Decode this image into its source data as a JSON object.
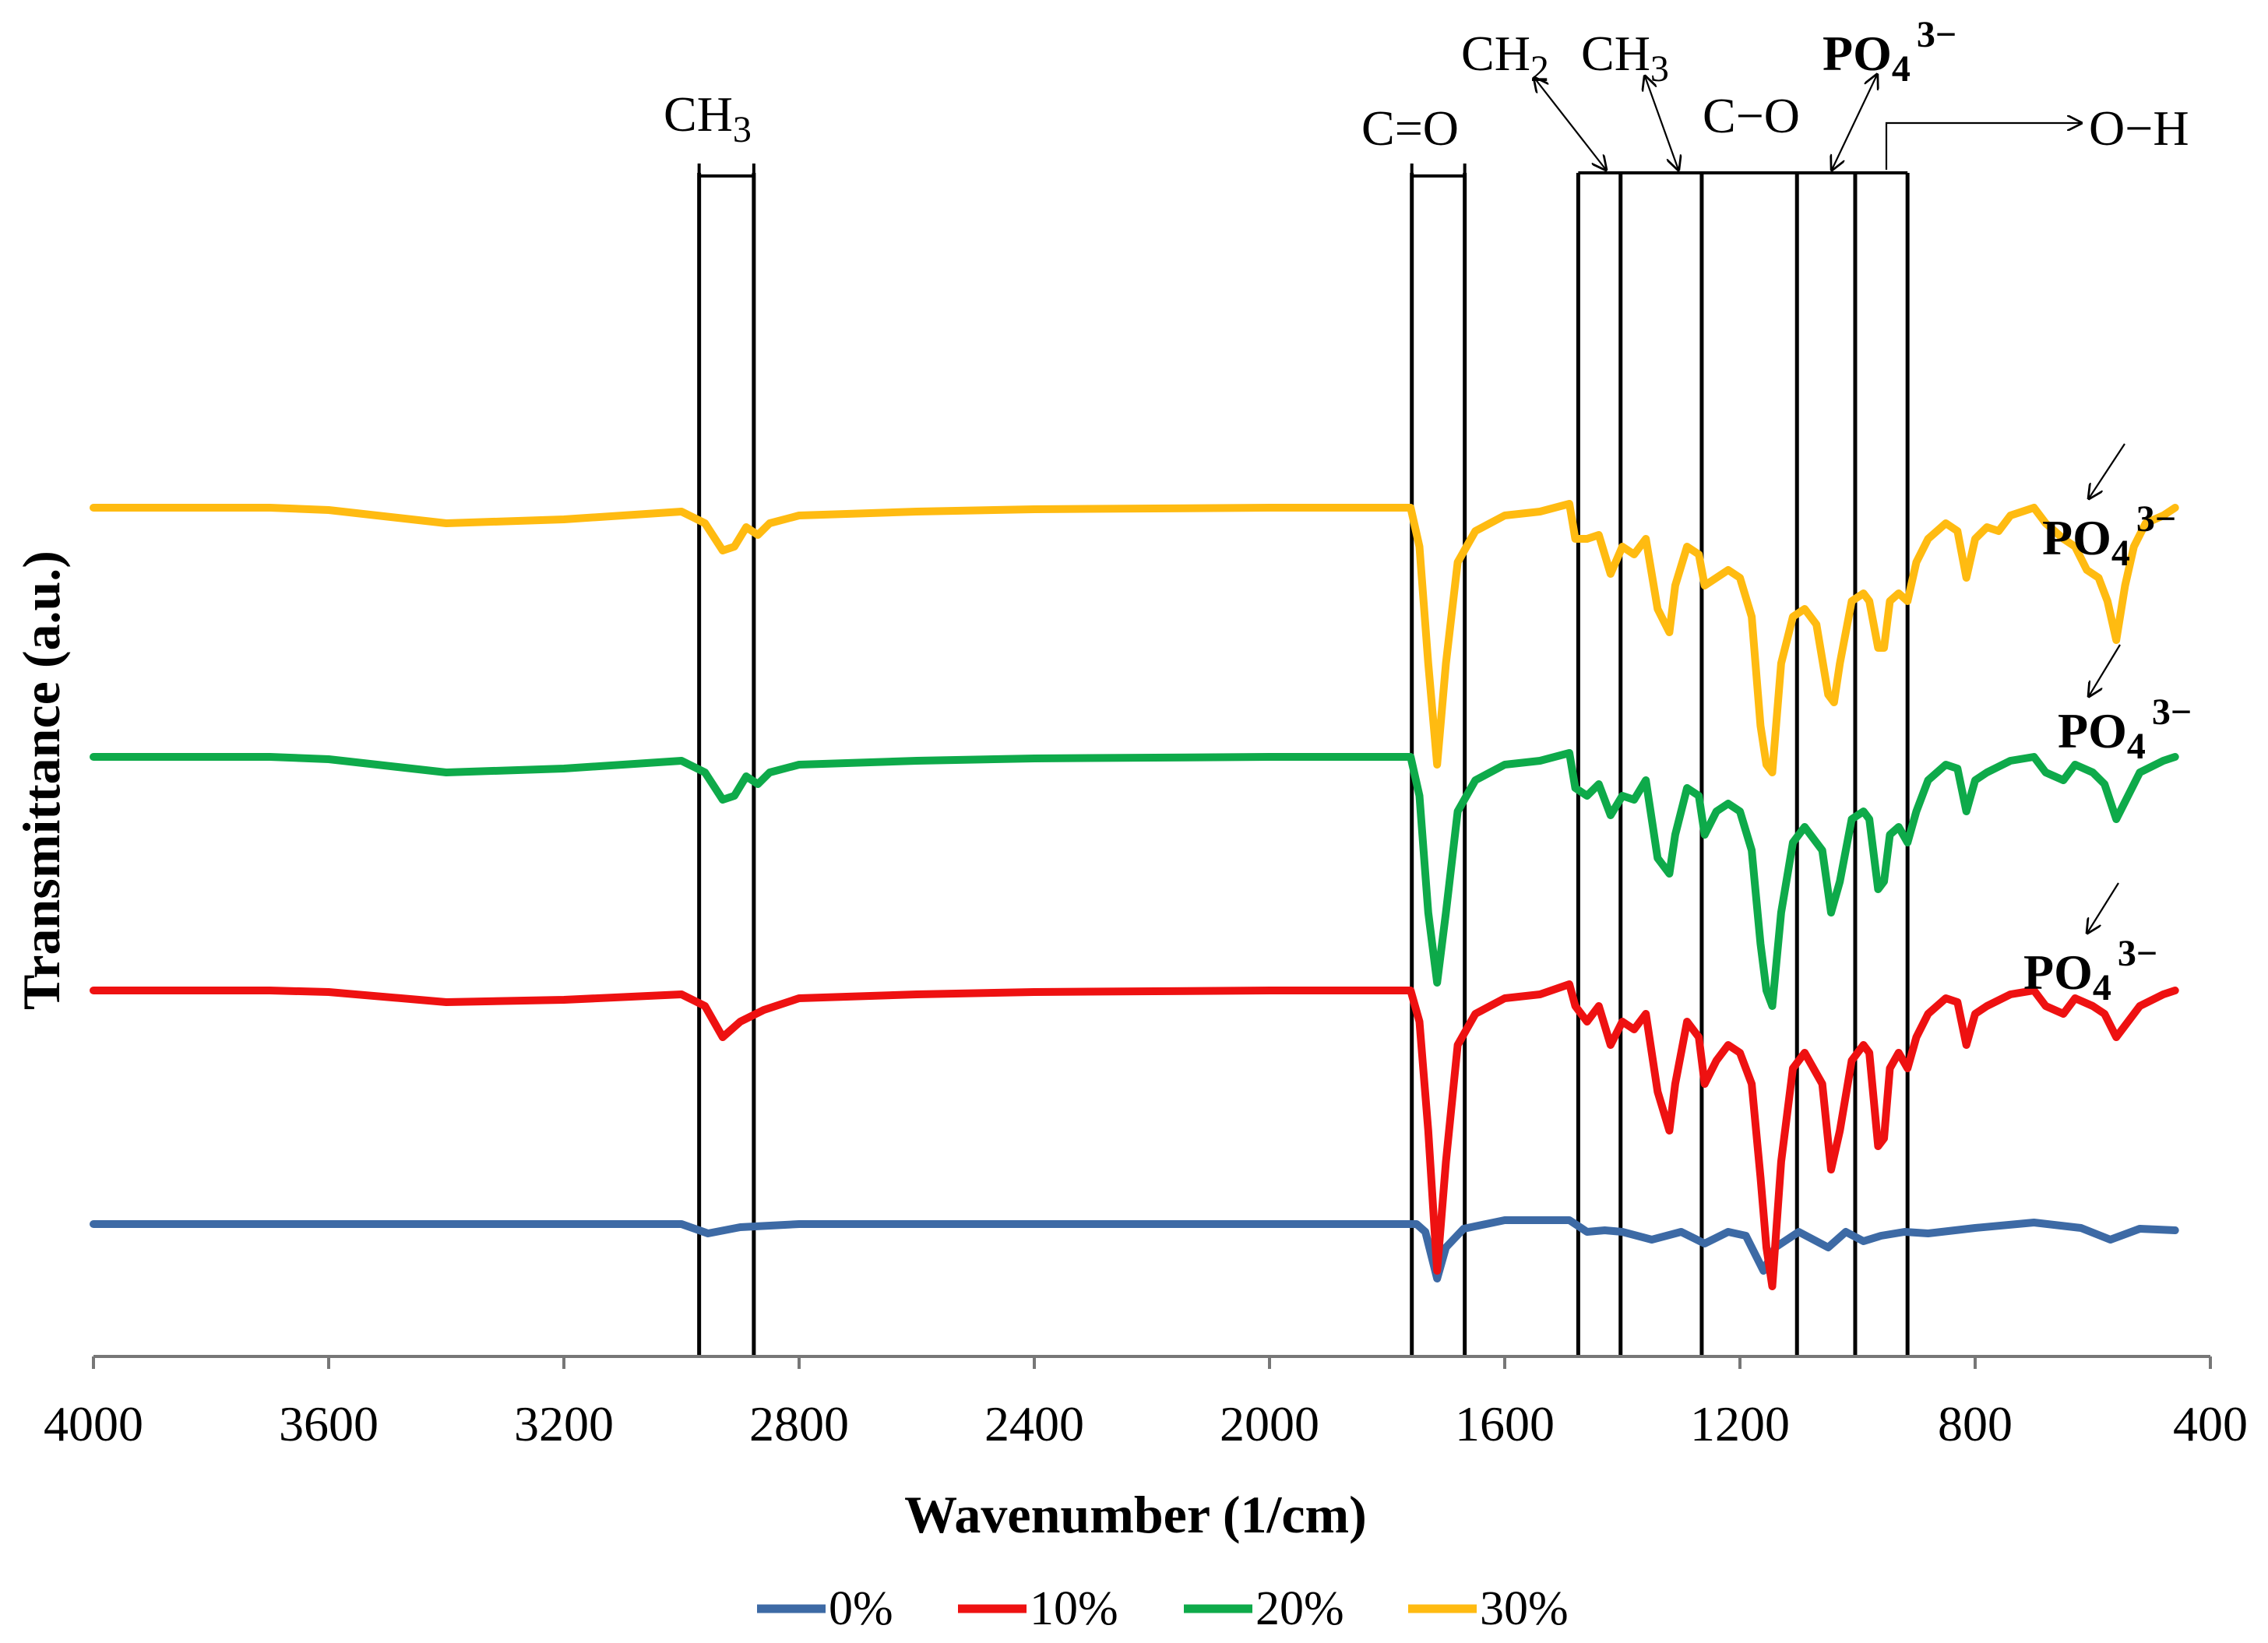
{
  "chart_data": {
    "type": "line",
    "title": "",
    "xlabel": "Wavenumber (1/cm)",
    "ylabel": "Transmittance (a.u.)",
    "xlim": [
      4000,
      400
    ],
    "x_ticks": [
      "4000",
      "3600",
      "3200",
      "2800",
      "2400",
      "2000",
      "1600",
      "1200",
      "800",
      "400"
    ],
    "legend_position": "bottom",
    "series": [
      {
        "name": "0%",
        "color": "#3d6aa5",
        "baseline": 0.17,
        "points": [
          [
            4000,
            0
          ],
          [
            3700,
            0
          ],
          [
            3400,
            0
          ],
          [
            3000,
            0
          ],
          [
            2955,
            -0.012
          ],
          [
            2900,
            -0.004
          ],
          [
            2800,
            0
          ],
          [
            2400,
            0
          ],
          [
            2000,
            0
          ],
          [
            1750,
            0
          ],
          [
            1735,
            -0.01
          ],
          [
            1715,
            -0.07
          ],
          [
            1700,
            -0.03
          ],
          [
            1670,
            -0.006
          ],
          [
            1600,
            0.005
          ],
          [
            1490,
            0.005
          ],
          [
            1460,
            -0.01
          ],
          [
            1430,
            -0.008
          ],
          [
            1400,
            -0.01
          ],
          [
            1350,
            -0.02
          ],
          [
            1300,
            -0.01
          ],
          [
            1260,
            -0.025
          ],
          [
            1220,
            -0.01
          ],
          [
            1190,
            -0.015
          ],
          [
            1160,
            -0.06
          ],
          [
            1140,
            -0.03
          ],
          [
            1100,
            -0.01
          ],
          [
            1050,
            -0.03
          ],
          [
            1020,
            -0.01
          ],
          [
            990,
            -0.022
          ],
          [
            960,
            -0.015
          ],
          [
            920,
            -0.01
          ],
          [
            880,
            -0.012
          ],
          [
            800,
            -0.005
          ],
          [
            700,
            0.002
          ],
          [
            620,
            -0.005
          ],
          [
            570,
            -0.02
          ],
          [
            520,
            -0.006
          ],
          [
            460,
            -0.008
          ]
        ]
      },
      {
        "name": "10%",
        "color": "#ee1111",
        "baseline": 0.47,
        "points": [
          [
            4000,
            0
          ],
          [
            3700,
            0
          ],
          [
            3600,
            -0.002
          ],
          [
            3400,
            -0.015
          ],
          [
            3200,
            -0.012
          ],
          [
            3000,
            -0.005
          ],
          [
            2960,
            -0.02
          ],
          [
            2930,
            -0.06
          ],
          [
            2900,
            -0.04
          ],
          [
            2860,
            -0.025
          ],
          [
            2800,
            -0.01
          ],
          [
            2600,
            -0.005
          ],
          [
            2400,
            -0.002
          ],
          [
            2000,
            0
          ],
          [
            1760,
            0
          ],
          [
            1745,
            -0.04
          ],
          [
            1730,
            -0.18
          ],
          [
            1715,
            -0.36
          ],
          [
            1700,
            -0.22
          ],
          [
            1680,
            -0.07
          ],
          [
            1650,
            -0.03
          ],
          [
            1600,
            -0.01
          ],
          [
            1540,
            -0.005
          ],
          [
            1490,
            0.008
          ],
          [
            1480,
            -0.02
          ],
          [
            1460,
            -0.04
          ],
          [
            1440,
            -0.02
          ],
          [
            1420,
            -0.07
          ],
          [
            1400,
            -0.04
          ],
          [
            1380,
            -0.05
          ],
          [
            1360,
            -0.03
          ],
          [
            1340,
            -0.13
          ],
          [
            1320,
            -0.18
          ],
          [
            1310,
            -0.12
          ],
          [
            1290,
            -0.04
          ],
          [
            1270,
            -0.06
          ],
          [
            1260,
            -0.12
          ],
          [
            1240,
            -0.09
          ],
          [
            1220,
            -0.07
          ],
          [
            1200,
            -0.08
          ],
          [
            1180,
            -0.12
          ],
          [
            1165,
            -0.24
          ],
          [
            1155,
            -0.33
          ],
          [
            1145,
            -0.38
          ],
          [
            1130,
            -0.22
          ],
          [
            1110,
            -0.1
          ],
          [
            1090,
            -0.08
          ],
          [
            1060,
            -0.12
          ],
          [
            1045,
            -0.23
          ],
          [
            1030,
            -0.18
          ],
          [
            1010,
            -0.09
          ],
          [
            990,
            -0.07
          ],
          [
            980,
            -0.08
          ],
          [
            965,
            -0.2
          ],
          [
            955,
            -0.19
          ],
          [
            945,
            -0.1
          ],
          [
            930,
            -0.08
          ],
          [
            915,
            -0.1
          ],
          [
            900,
            -0.06
          ],
          [
            880,
            -0.03
          ],
          [
            850,
            -0.01
          ],
          [
            830,
            -0.015
          ],
          [
            815,
            -0.07
          ],
          [
            800,
            -0.03
          ],
          [
            780,
            -0.02
          ],
          [
            740,
            -0.005
          ],
          [
            700,
            0
          ],
          [
            680,
            -0.02
          ],
          [
            650,
            -0.03
          ],
          [
            630,
            -0.01
          ],
          [
            600,
            -0.02
          ],
          [
            580,
            -0.03
          ],
          [
            560,
            -0.06
          ],
          [
            540,
            -0.04
          ],
          [
            520,
            -0.02
          ],
          [
            480,
            -0.005
          ],
          [
            460,
            0
          ]
        ]
      },
      {
        "name": "20%",
        "color": "#0eaa4a",
        "baseline": 0.77,
        "points": [
          [
            4000,
            0
          ],
          [
            3700,
            0
          ],
          [
            3600,
            -0.003
          ],
          [
            3400,
            -0.02
          ],
          [
            3200,
            -0.015
          ],
          [
            3000,
            -0.005
          ],
          [
            2960,
            -0.02
          ],
          [
            2930,
            -0.055
          ],
          [
            2910,
            -0.05
          ],
          [
            2890,
            -0.025
          ],
          [
            2870,
            -0.035
          ],
          [
            2850,
            -0.02
          ],
          [
            2800,
            -0.01
          ],
          [
            2600,
            -0.005
          ],
          [
            2400,
            -0.002
          ],
          [
            2000,
            0
          ],
          [
            1760,
            0
          ],
          [
            1745,
            -0.05
          ],
          [
            1730,
            -0.2
          ],
          [
            1715,
            -0.29
          ],
          [
            1700,
            -0.2
          ],
          [
            1680,
            -0.07
          ],
          [
            1650,
            -0.03
          ],
          [
            1600,
            -0.01
          ],
          [
            1540,
            -0.005
          ],
          [
            1490,
            0.005
          ],
          [
            1480,
            -0.04
          ],
          [
            1460,
            -0.05
          ],
          [
            1440,
            -0.035
          ],
          [
            1420,
            -0.075
          ],
          [
            1400,
            -0.05
          ],
          [
            1380,
            -0.055
          ],
          [
            1360,
            -0.03
          ],
          [
            1340,
            -0.13
          ],
          [
            1320,
            -0.15
          ],
          [
            1310,
            -0.1
          ],
          [
            1290,
            -0.04
          ],
          [
            1270,
            -0.05
          ],
          [
            1260,
            -0.1
          ],
          [
            1240,
            -0.07
          ],
          [
            1220,
            -0.06
          ],
          [
            1200,
            -0.07
          ],
          [
            1180,
            -0.12
          ],
          [
            1165,
            -0.24
          ],
          [
            1155,
            -0.3
          ],
          [
            1145,
            -0.32
          ],
          [
            1130,
            -0.2
          ],
          [
            1110,
            -0.11
          ],
          [
            1090,
            -0.09
          ],
          [
            1060,
            -0.12
          ],
          [
            1045,
            -0.2
          ],
          [
            1030,
            -0.16
          ],
          [
            1010,
            -0.08
          ],
          [
            990,
            -0.07
          ],
          [
            980,
            -0.08
          ],
          [
            965,
            -0.17
          ],
          [
            955,
            -0.16
          ],
          [
            945,
            -0.1
          ],
          [
            930,
            -0.09
          ],
          [
            915,
            -0.11
          ],
          [
            900,
            -0.07
          ],
          [
            880,
            -0.03
          ],
          [
            850,
            -0.01
          ],
          [
            830,
            -0.015
          ],
          [
            815,
            -0.07
          ],
          [
            800,
            -0.03
          ],
          [
            780,
            -0.02
          ],
          [
            740,
            -0.005
          ],
          [
            700,
            0
          ],
          [
            680,
            -0.02
          ],
          [
            650,
            -0.03
          ],
          [
            630,
            -0.01
          ],
          [
            600,
            -0.02
          ],
          [
            580,
            -0.035
          ],
          [
            560,
            -0.08
          ],
          [
            540,
            -0.05
          ],
          [
            520,
            -0.02
          ],
          [
            480,
            -0.005
          ],
          [
            460,
            0
          ]
        ]
      },
      {
        "name": "30%",
        "color": "#ffbb11",
        "baseline": 1.09,
        "points": [
          [
            4000,
            0
          ],
          [
            3700,
            0
          ],
          [
            3600,
            -0.003
          ],
          [
            3400,
            -0.02
          ],
          [
            3200,
            -0.015
          ],
          [
            3000,
            -0.005
          ],
          [
            2960,
            -0.02
          ],
          [
            2930,
            -0.055
          ],
          [
            2910,
            -0.05
          ],
          [
            2890,
            -0.025
          ],
          [
            2870,
            -0.035
          ],
          [
            2850,
            -0.02
          ],
          [
            2800,
            -0.01
          ],
          [
            2600,
            -0.005
          ],
          [
            2400,
            -0.002
          ],
          [
            2000,
            0
          ],
          [
            1760,
            0
          ],
          [
            1745,
            -0.05
          ],
          [
            1730,
            -0.2
          ],
          [
            1715,
            -0.33
          ],
          [
            1700,
            -0.2
          ],
          [
            1680,
            -0.07
          ],
          [
            1650,
            -0.03
          ],
          [
            1600,
            -0.01
          ],
          [
            1540,
            -0.005
          ],
          [
            1490,
            0.005
          ],
          [
            1480,
            -0.04
          ],
          [
            1460,
            -0.04
          ],
          [
            1440,
            -0.035
          ],
          [
            1420,
            -0.085
          ],
          [
            1400,
            -0.05
          ],
          [
            1380,
            -0.06
          ],
          [
            1360,
            -0.04
          ],
          [
            1340,
            -0.13
          ],
          [
            1320,
            -0.16
          ],
          [
            1310,
            -0.1
          ],
          [
            1290,
            -0.05
          ],
          [
            1270,
            -0.06
          ],
          [
            1260,
            -0.1
          ],
          [
            1240,
            -0.09
          ],
          [
            1220,
            -0.08
          ],
          [
            1200,
            -0.09
          ],
          [
            1180,
            -0.14
          ],
          [
            1165,
            -0.28
          ],
          [
            1155,
            -0.33
          ],
          [
            1145,
            -0.34
          ],
          [
            1130,
            -0.2
          ],
          [
            1110,
            -0.14
          ],
          [
            1090,
            -0.13
          ],
          [
            1070,
            -0.15
          ],
          [
            1050,
            -0.24
          ],
          [
            1040,
            -0.25
          ],
          [
            1030,
            -0.2
          ],
          [
            1010,
            -0.12
          ],
          [
            990,
            -0.11
          ],
          [
            980,
            -0.12
          ],
          [
            965,
            -0.18
          ],
          [
            955,
            -0.18
          ],
          [
            945,
            -0.12
          ],
          [
            930,
            -0.11
          ],
          [
            915,
            -0.12
          ],
          [
            900,
            -0.07
          ],
          [
            880,
            -0.04
          ],
          [
            850,
            -0.02
          ],
          [
            830,
            -0.03
          ],
          [
            815,
            -0.09
          ],
          [
            800,
            -0.04
          ],
          [
            780,
            -0.025
          ],
          [
            760,
            -0.03
          ],
          [
            740,
            -0.01
          ],
          [
            700,
            0
          ],
          [
            680,
            -0.02
          ],
          [
            650,
            -0.04
          ],
          [
            630,
            -0.05
          ],
          [
            610,
            -0.08
          ],
          [
            590,
            -0.09
          ],
          [
            575,
            -0.12
          ],
          [
            560,
            -0.17
          ],
          [
            545,
            -0.1
          ],
          [
            530,
            -0.05
          ],
          [
            510,
            -0.02
          ],
          [
            480,
            -0.01
          ],
          [
            460,
            0
          ]
        ]
      }
    ],
    "band_lines": [
      2970,
      2877,
      1758,
      1668,
      1475,
      1403,
      1265,
      1103,
      1004,
      915
    ],
    "annotations": [
      {
        "text": "CH",
        "sub": "3",
        "sup": ""
      },
      {
        "text": "C=O",
        "sub": "",
        "sup": ""
      },
      {
        "text": "CH",
        "sub": "2",
        "sup": ""
      },
      {
        "text": "CH",
        "sub": "3",
        "sup": ""
      },
      {
        "text": "C−O",
        "sub": "",
        "sup": ""
      },
      {
        "text": "PO",
        "sub": "4",
        "sup": "3−"
      },
      {
        "text": "O−H",
        "sub": "",
        "sup": ""
      },
      {
        "text": "PO",
        "sub": "4",
        "sup": "3−"
      },
      {
        "text": "PO",
        "sub": "4",
        "sup": "3−"
      },
      {
        "text": "PO",
        "sub": "4",
        "sup": "3−"
      }
    ]
  }
}
